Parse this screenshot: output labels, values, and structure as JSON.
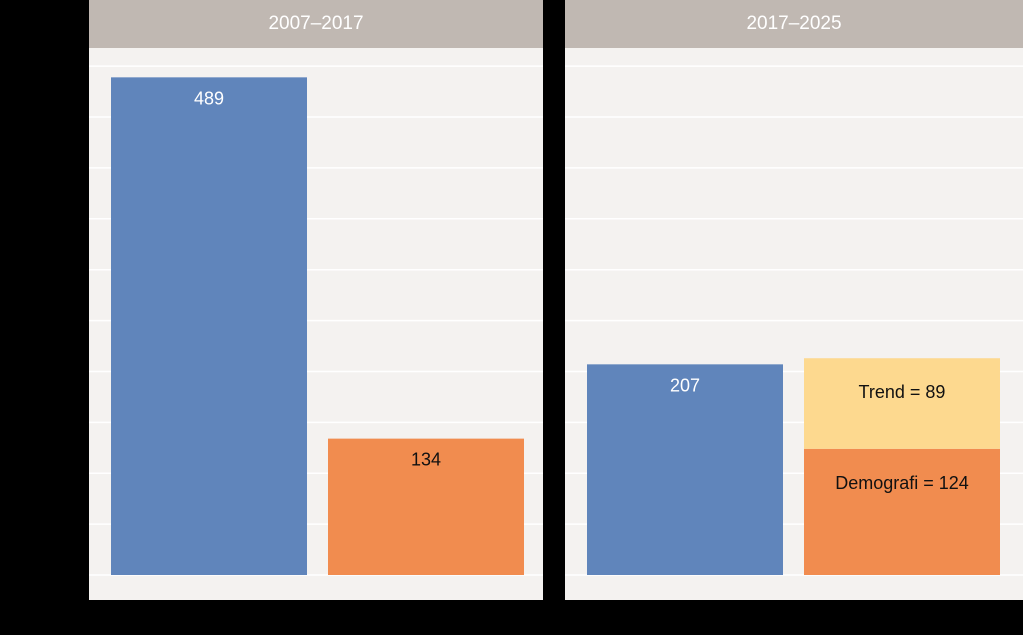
{
  "colors": {
    "blue": "#6085bb",
    "orange": "#f18c4f",
    "yellow": "#fdd98f",
    "grid": "#ffffff",
    "header": "#c0b8b2",
    "plot_bg": "#f4f2f0"
  },
  "chart_data": [
    {
      "type": "bar",
      "title": "2007–2017",
      "ylim": [
        0,
        510
      ],
      "grid": true,
      "bars": [
        {
          "value": 489,
          "label": "489",
          "color": "#6085bb",
          "label_color": "#ffffff"
        },
        {
          "value": 134,
          "label": "134",
          "color": "#f18c4f",
          "label_color": "#111111"
        }
      ]
    },
    {
      "type": "bar",
      "title": "2017–2025",
      "ylim": [
        0,
        510
      ],
      "grid": true,
      "bars": [
        {
          "value": 207,
          "label": "207",
          "color": "#6085bb",
          "label_color": "#ffffff"
        },
        {
          "stacked": true,
          "segments": [
            {
              "name": "Demografi",
              "value": 124,
              "label": "Demografi = 124",
              "color": "#f18c4f",
              "label_color": "#111111"
            },
            {
              "name": "Trend",
              "value": 89,
              "label": "Trend = 89",
              "color": "#fdd98f",
              "label_color": "#111111"
            }
          ]
        }
      ]
    }
  ]
}
